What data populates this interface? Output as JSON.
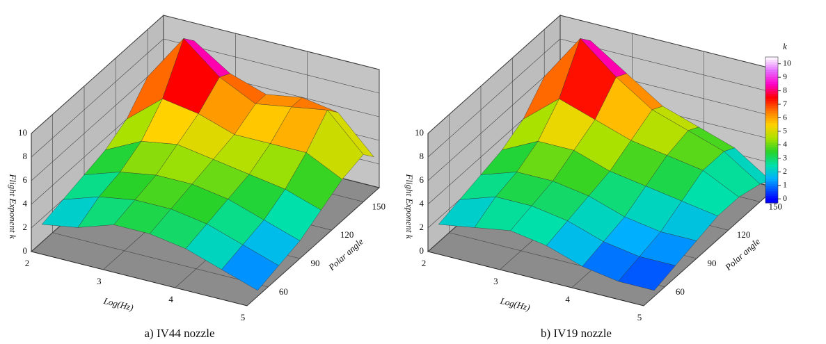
{
  "chart_data": [
    {
      "type": "surface3d",
      "title": "a) IV44 nozzle",
      "xlabel": "Log(Hz)",
      "ylabel": "Polar angle",
      "zlabel": "Flight Exponent k",
      "x": [
        2,
        2.5,
        3,
        3.5,
        4,
        4.5,
        5
      ],
      "y": [
        50,
        70,
        90,
        110,
        130,
        150,
        160
      ],
      "z": [
        [
          1.5,
          2,
          3,
          3,
          2.5,
          1.5,
          0.5
        ],
        [
          2,
          3,
          3.5,
          3.5,
          3,
          2,
          1
        ],
        [
          2.5,
          3.5,
          4,
          4,
          3.5,
          2.5,
          1.5
        ],
        [
          3,
          4.5,
          5,
          4.5,
          4,
          3.5,
          2.5
        ],
        [
          4,
          6.5,
          6,
          5,
          5,
          5,
          3.5
        ],
        [
          6,
          10,
          7.5,
          6,
          6.5,
          7,
          4
        ],
        [
          5,
          9,
          7,
          6,
          6.5,
          6,
          3
        ]
      ],
      "xlim": [
        2,
        5
      ],
      "ylim": [
        40,
        165
      ],
      "zlim": [
        0,
        10
      ],
      "xticks": [
        2,
        3,
        4,
        5
      ],
      "yticks": [
        60,
        90,
        120,
        150
      ],
      "zticks": [
        0,
        2,
        4,
        6,
        8,
        10
      ]
    },
    {
      "type": "surface3d",
      "title": "b) IV19 nozzle",
      "xlabel": "Log(Hz)",
      "ylabel": "Polar angle",
      "zlabel": "Flight Exponent k",
      "x": [
        2,
        2.5,
        3,
        3.5,
        4,
        4.5,
        5
      ],
      "y": [
        50,
        70,
        90,
        110,
        130,
        150,
        160
      ],
      "z": [
        [
          1.5,
          2,
          2.5,
          2,
          1,
          0.5,
          0.5
        ],
        [
          2,
          3,
          3,
          2.5,
          1.5,
          1,
          1
        ],
        [
          2.5,
          3.5,
          3.5,
          3,
          2,
          1.5,
          1.5
        ],
        [
          3,
          4.5,
          4.5,
          3.5,
          3,
          2.5,
          2
        ],
        [
          4,
          6.5,
          5.5,
          4.5,
          4,
          3.5,
          2
        ],
        [
          6,
          10,
          7.5,
          5.5,
          4.5,
          3.5,
          1.5
        ],
        [
          5,
          9,
          7,
          5,
          4,
          3,
          1
        ]
      ],
      "xlim": [
        2,
        5
      ],
      "ylim": [
        40,
        165
      ],
      "zlim": [
        0,
        10
      ],
      "xticks": [
        2,
        3,
        4,
        5
      ],
      "yticks": [
        60,
        90,
        120,
        150
      ],
      "zticks": [
        0,
        2,
        4,
        6,
        8,
        10
      ],
      "colorbar": {
        "title": "k",
        "lim": [
          -0.3,
          10.5
        ],
        "ticks": [
          0,
          1,
          2,
          3,
          4,
          5,
          6,
          7,
          8,
          9,
          10
        ]
      }
    }
  ]
}
